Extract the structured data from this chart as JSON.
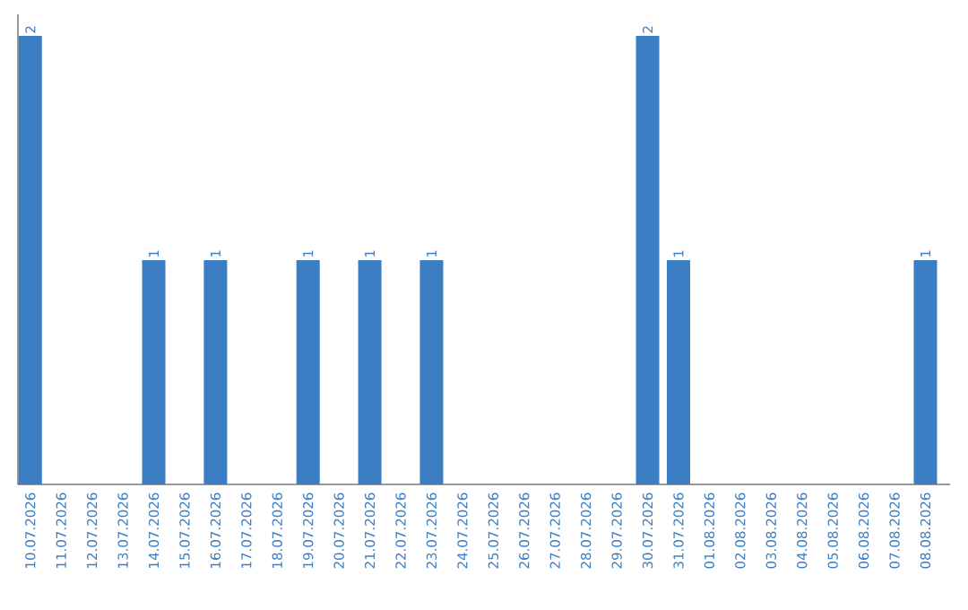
{
  "chart_data": {
    "type": "bar",
    "color": "#3b7ec4",
    "categories": [
      "10.07.2026",
      "11.07.2026",
      "12.07.2026",
      "13.07.2026",
      "14.07.2026",
      "15.07.2026",
      "16.07.2026",
      "17.07.2026",
      "18.07.2026",
      "19.07.2026",
      "20.07.2026",
      "21.07.2026",
      "22.07.2026",
      "23.07.2026",
      "24.07.2026",
      "25.07.2026",
      "26.07.2026",
      "27.07.2026",
      "28.07.2026",
      "29.07.2026",
      "30.07.2026",
      "31.07.2026",
      "01.08.2026",
      "02.08.2026",
      "03.08.2026",
      "04.08.2026",
      "05.08.2026",
      "06.08.2026",
      "07.08.2026",
      "08.08.2026"
    ],
    "values": [
      2,
      0,
      0,
      0,
      1,
      0,
      1,
      0,
      0,
      1,
      0,
      1,
      0,
      1,
      0,
      0,
      0,
      0,
      0,
      0,
      2,
      1,
      0,
      0,
      0,
      0,
      0,
      0,
      0,
      1
    ],
    "value_labels": [
      "2",
      null,
      null,
      null,
      "1",
      null,
      "1",
      null,
      null,
      "1",
      null,
      "1",
      null,
      "1",
      null,
      null,
      null,
      null,
      null,
      null,
      "2",
      "1",
      null,
      null,
      null,
      null,
      null,
      null,
      null,
      "1"
    ],
    "grid": false,
    "legend": false
  }
}
